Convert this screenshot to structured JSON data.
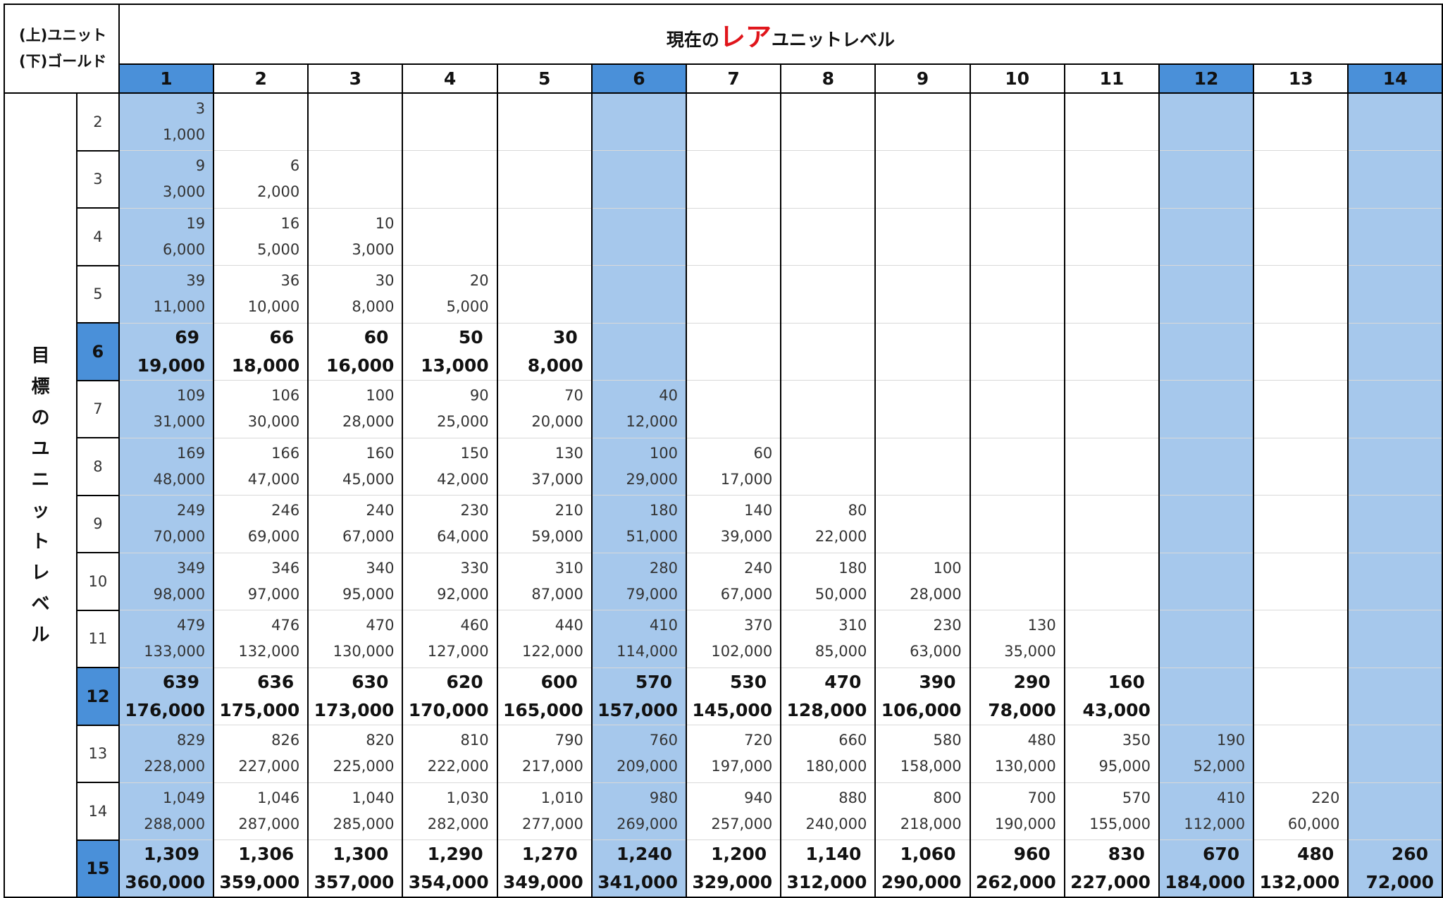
{
  "corner": {
    "line1": "(上)ユニット",
    "line2": "(下)ゴールド"
  },
  "title": {
    "before": "現在の",
    "emph": "レア",
    "after": "ユニットレベル"
  },
  "side_label": [
    "目",
    "標",
    "の",
    "ユ",
    "ニ",
    "ッ",
    "ト",
    "レ",
    "ベ",
    "ル"
  ],
  "current_levels": [
    "1",
    "2",
    "3",
    "4",
    "5",
    "6",
    "7",
    "8",
    "9",
    "10",
    "11",
    "12",
    "13",
    "14"
  ],
  "highlight_columns": [
    "1",
    "6",
    "12",
    "14"
  ],
  "highlight_rows": [
    "6",
    "12",
    "15"
  ],
  "rows": [
    {
      "target": "2",
      "cells": [
        [
          "3",
          "1,000"
        ]
      ]
    },
    {
      "target": "3",
      "cells": [
        [
          "9",
          "3,000"
        ],
        [
          "6",
          "2,000"
        ]
      ]
    },
    {
      "target": "4",
      "cells": [
        [
          "19",
          "6,000"
        ],
        [
          "16",
          "5,000"
        ],
        [
          "10",
          "3,000"
        ]
      ]
    },
    {
      "target": "5",
      "cells": [
        [
          "39",
          "11,000"
        ],
        [
          "36",
          "10,000"
        ],
        [
          "30",
          "8,000"
        ],
        [
          "20",
          "5,000"
        ]
      ]
    },
    {
      "target": "6",
      "cells": [
        [
          "69",
          "19,000"
        ],
        [
          "66",
          "18,000"
        ],
        [
          "60",
          "16,000"
        ],
        [
          "50",
          "13,000"
        ],
        [
          "30",
          "8,000"
        ]
      ]
    },
    {
      "target": "7",
      "cells": [
        [
          "109",
          "31,000"
        ],
        [
          "106",
          "30,000"
        ],
        [
          "100",
          "28,000"
        ],
        [
          "90",
          "25,000"
        ],
        [
          "70",
          "20,000"
        ],
        [
          "40",
          "12,000"
        ]
      ]
    },
    {
      "target": "8",
      "cells": [
        [
          "169",
          "48,000"
        ],
        [
          "166",
          "47,000"
        ],
        [
          "160",
          "45,000"
        ],
        [
          "150",
          "42,000"
        ],
        [
          "130",
          "37,000"
        ],
        [
          "100",
          "29,000"
        ],
        [
          "60",
          "17,000"
        ]
      ]
    },
    {
      "target": "9",
      "cells": [
        [
          "249",
          "70,000"
        ],
        [
          "246",
          "69,000"
        ],
        [
          "240",
          "67,000"
        ],
        [
          "230",
          "64,000"
        ],
        [
          "210",
          "59,000"
        ],
        [
          "180",
          "51,000"
        ],
        [
          "140",
          "39,000"
        ],
        [
          "80",
          "22,000"
        ]
      ]
    },
    {
      "target": "10",
      "cells": [
        [
          "349",
          "98,000"
        ],
        [
          "346",
          "97,000"
        ],
        [
          "340",
          "95,000"
        ],
        [
          "330",
          "92,000"
        ],
        [
          "310",
          "87,000"
        ],
        [
          "280",
          "79,000"
        ],
        [
          "240",
          "67,000"
        ],
        [
          "180",
          "50,000"
        ],
        [
          "100",
          "28,000"
        ]
      ]
    },
    {
      "target": "11",
      "cells": [
        [
          "479",
          "133,000"
        ],
        [
          "476",
          "132,000"
        ],
        [
          "470",
          "130,000"
        ],
        [
          "460",
          "127,000"
        ],
        [
          "440",
          "122,000"
        ],
        [
          "410",
          "114,000"
        ],
        [
          "370",
          "102,000"
        ],
        [
          "310",
          "85,000"
        ],
        [
          "230",
          "63,000"
        ],
        [
          "130",
          "35,000"
        ]
      ]
    },
    {
      "target": "12",
      "cells": [
        [
          "639",
          "176,000"
        ],
        [
          "636",
          "175,000"
        ],
        [
          "630",
          "173,000"
        ],
        [
          "620",
          "170,000"
        ],
        [
          "600",
          "165,000"
        ],
        [
          "570",
          "157,000"
        ],
        [
          "530",
          "145,000"
        ],
        [
          "470",
          "128,000"
        ],
        [
          "390",
          "106,000"
        ],
        [
          "290",
          "78,000"
        ],
        [
          "160",
          "43,000"
        ]
      ]
    },
    {
      "target": "13",
      "cells": [
        [
          "829",
          "228,000"
        ],
        [
          "826",
          "227,000"
        ],
        [
          "820",
          "225,000"
        ],
        [
          "810",
          "222,000"
        ],
        [
          "790",
          "217,000"
        ],
        [
          "760",
          "209,000"
        ],
        [
          "720",
          "197,000"
        ],
        [
          "660",
          "180,000"
        ],
        [
          "580",
          "158,000"
        ],
        [
          "480",
          "130,000"
        ],
        [
          "350",
          "95,000"
        ],
        [
          "190",
          "52,000"
        ]
      ]
    },
    {
      "target": "14",
      "cells": [
        [
          "1,049",
          "288,000"
        ],
        [
          "1,046",
          "287,000"
        ],
        [
          "1,040",
          "285,000"
        ],
        [
          "1,030",
          "282,000"
        ],
        [
          "1,010",
          "277,000"
        ],
        [
          "980",
          "269,000"
        ],
        [
          "940",
          "257,000"
        ],
        [
          "880",
          "240,000"
        ],
        [
          "800",
          "218,000"
        ],
        [
          "700",
          "190,000"
        ],
        [
          "570",
          "155,000"
        ],
        [
          "410",
          "112,000"
        ],
        [
          "220",
          "60,000"
        ]
      ]
    },
    {
      "target": "15",
      "cells": [
        [
          "1,309",
          "360,000"
        ],
        [
          "1,306",
          "359,000"
        ],
        [
          "1,300",
          "357,000"
        ],
        [
          "1,290",
          "354,000"
        ],
        [
          "1,270",
          "349,000"
        ],
        [
          "1,240",
          "341,000"
        ],
        [
          "1,200",
          "329,000"
        ],
        [
          "1,140",
          "312,000"
        ],
        [
          "1,060",
          "290,000"
        ],
        [
          "960",
          "262,000"
        ],
        [
          "830",
          "227,000"
        ],
        [
          "670",
          "184,000"
        ],
        [
          "480",
          "132,000"
        ],
        [
          "260",
          "72,000"
        ]
      ]
    }
  ]
}
